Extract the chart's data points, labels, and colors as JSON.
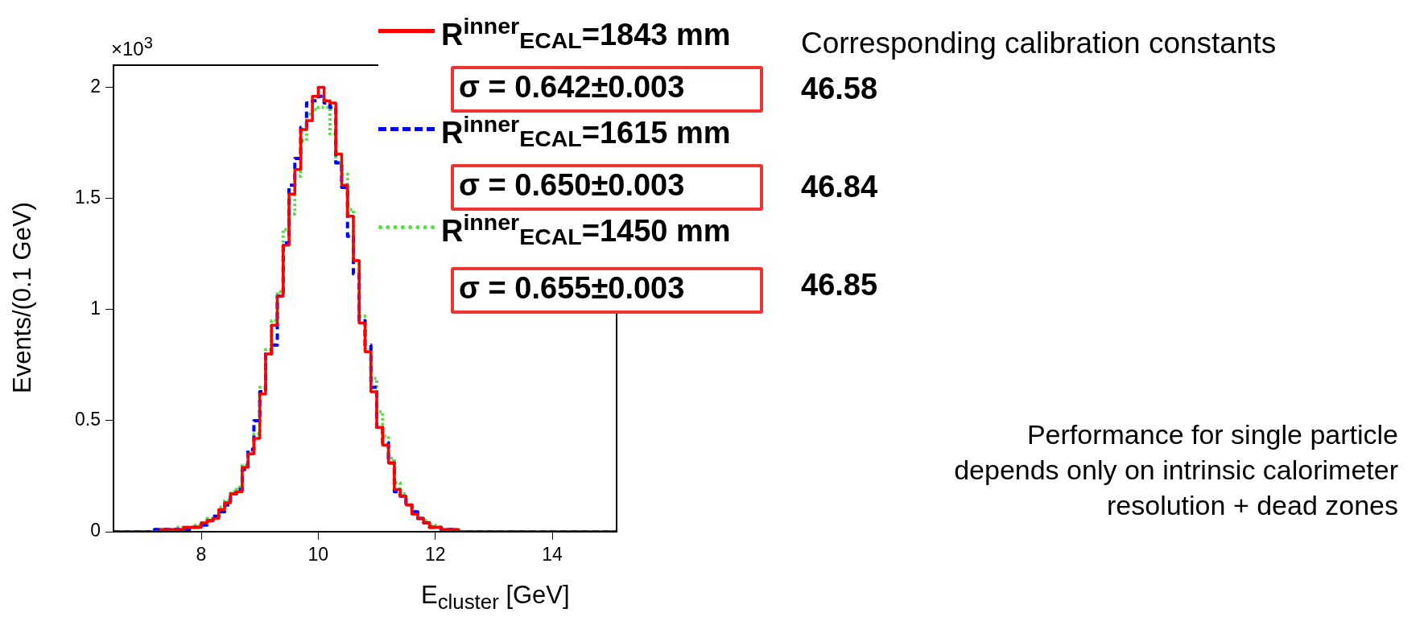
{
  "chart_data": {
    "type": "histogram",
    "ylabel": "Events/(0.1 GeV)",
    "xlabel": "E$_{cluster}$ [GeV]",
    "bins": [
      6.5,
      6.6,
      6.7,
      6.8,
      6.9,
      7.0,
      7.1,
      7.2,
      7.3,
      7.4,
      7.5,
      7.6,
      7.7,
      7.8,
      7.9,
      8.0,
      8.1,
      8.2,
      8.3,
      8.4,
      8.5,
      8.6,
      8.7,
      8.8,
      8.9,
      9.0,
      9.1,
      9.2,
      9.3,
      9.4,
      9.5,
      9.6,
      9.7,
      9.8,
      9.9,
      10.0,
      10.1,
      10.2,
      10.3,
      10.4,
      10.5,
      10.6,
      10.7,
      10.8,
      10.9,
      11.0,
      11.1,
      11.2,
      11.3,
      11.4,
      11.5,
      11.6,
      11.7,
      11.8,
      11.9,
      12.0,
      12.1,
      12.2,
      12.3,
      12.4,
      12.5,
      12.6,
      12.7,
      12.8,
      12.9,
      13.0,
      13.1,
      13.2,
      13.3,
      13.4,
      13.5,
      13.6,
      13.7,
      13.8,
      13.9,
      14.0,
      14.1,
      14.2,
      14.3,
      14.4,
      14.5,
      14.6,
      14.7,
      14.8,
      14.9,
      15.0,
      15.1
    ],
    "series": [
      {
        "name": "R$^{inner}$$_{ECAL}$=1843 mm",
        "color": "#ff0000",
        "line_style": "solid",
        "values": [
          0,
          0,
          0,
          0,
          0,
          0,
          0,
          0,
          0.01,
          0.01,
          0.01,
          0.01,
          0.02,
          0.02,
          0.02,
          0.04,
          0.05,
          0.06,
          0.1,
          0.13,
          0.17,
          0.18,
          0.29,
          0.35,
          0.42,
          0.62,
          0.8,
          0.93,
          1.06,
          1.29,
          1.52,
          1.63,
          1.81,
          1.85,
          1.96,
          2.0,
          1.94,
          1.93,
          1.7,
          1.56,
          1.42,
          1.22,
          0.94,
          0.81,
          0.63,
          0.47,
          0.39,
          0.31,
          0.19,
          0.16,
          0.12,
          0.08,
          0.06,
          0.04,
          0.02,
          0.02,
          0.01,
          0.01,
          0.01,
          0,
          0,
          0,
          0,
          0,
          0,
          0,
          0,
          0,
          0,
          0,
          0,
          0,
          0,
          0,
          0,
          0,
          0,
          0,
          0,
          0,
          0,
          0,
          0,
          0,
          0,
          0
        ]
      },
      {
        "name": "R$^{inner}$$_{ECAL}$=1615 mm",
        "color": "#0000ff",
        "line_style": "dashed",
        "values": [
          0,
          0,
          0,
          0,
          0,
          0,
          0,
          0.01,
          0.01,
          0.01,
          0.01,
          0.01,
          0.01,
          0.02,
          0.02,
          0.03,
          0.05,
          0.07,
          0.09,
          0.12,
          0.17,
          0.19,
          0.28,
          0.37,
          0.5,
          0.63,
          0.8,
          0.84,
          1.06,
          1.3,
          1.56,
          1.68,
          1.82,
          1.93,
          1.94,
          1.96,
          1.93,
          1.91,
          1.66,
          1.55,
          1.33,
          1.16,
          0.95,
          0.84,
          0.65,
          0.47,
          0.4,
          0.31,
          0.18,
          0.16,
          0.12,
          0.09,
          0.06,
          0.04,
          0.02,
          0.02,
          0.01,
          0.01,
          0,
          0,
          0,
          0,
          0,
          0,
          0,
          0,
          0,
          0,
          0,
          0,
          0,
          0,
          0,
          0,
          0,
          0,
          0,
          0,
          0,
          0,
          0,
          0,
          0,
          0,
          0,
          0
        ]
      },
      {
        "name": "R$^{inner}$$_{ECAL}$=1450 mm",
        "color": "#55dd44",
        "line_style": "dotted",
        "values": [
          0,
          0,
          0,
          0,
          0,
          0,
          0,
          0.01,
          0.01,
          0.01,
          0.01,
          0.02,
          0.02,
          0.02,
          0.03,
          0.04,
          0.06,
          0.07,
          0.11,
          0.14,
          0.18,
          0.2,
          0.3,
          0.36,
          0.44,
          0.65,
          0.82,
          0.95,
          1.08,
          1.36,
          1.43,
          1.6,
          1.76,
          1.88,
          1.9,
          1.91,
          1.91,
          1.79,
          1.66,
          1.61,
          1.45,
          1.22,
          0.97,
          0.82,
          0.69,
          0.54,
          0.43,
          0.33,
          0.22,
          0.17,
          0.12,
          0.09,
          0.06,
          0.05,
          0.03,
          0.02,
          0.01,
          0.01,
          0.01,
          0,
          0,
          0,
          0,
          0,
          0,
          0,
          0,
          0,
          0,
          0,
          0,
          0,
          0,
          0,
          0,
          0,
          0,
          0,
          0,
          0,
          0,
          0,
          0,
          0,
          0,
          0
        ]
      }
    ],
    "xlim": [
      6.5,
      15.1
    ],
    "xticks": [
      8,
      10,
      12,
      14
    ],
    "ylim": [
      0,
      2.1
    ],
    "yticks": [
      0,
      0.5,
      1,
      1.5,
      2
    ],
    "grid": false,
    "legend": "top right",
    "annotations": [
      "×10$^{3}$",
      "σ = 0.642±0.003",
      "σ = 0.650±0.003",
      "σ = 0.655±0.003",
      "Corresponding calibration constants",
      "46.58",
      "46.84",
      "46.85",
      "Performance for single particle\ndepends only on intrinsic calorimeter\nresolution + dead zones"
    ]
  }
}
